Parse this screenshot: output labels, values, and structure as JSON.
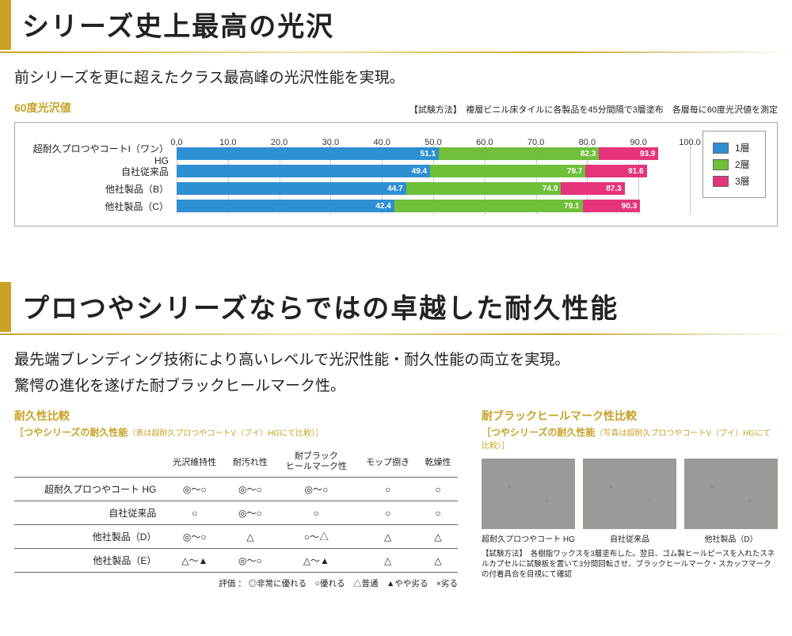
{
  "section1": {
    "headline": "シリーズ史上最高の光沢",
    "subhead": "前シリーズを更に超えたクラス最高峰の光沢性能を実現。",
    "chart": {
      "title": "60度光沢値",
      "method": "【試験方法】　複層ビニル床タイルに各製品を45分間隔で3層塗布　各層毎に60度光沢値を測定",
      "xmin": 0,
      "xmax": 100,
      "xstep": 10,
      "ticks": [
        "0.0",
        "10.0",
        "20.0",
        "30.0",
        "40.0",
        "50.0",
        "60.0",
        "70.0",
        "80.0",
        "90.0",
        "100.0"
      ],
      "tick_positions": [
        0,
        10,
        20,
        30,
        40,
        50,
        60,
        70,
        80,
        90,
        100
      ],
      "series_colors": {
        "l1": "#2f8fd3",
        "l2": "#6fbf3a",
        "l3": "#e5347a"
      },
      "legend_labels": [
        "1層",
        "2層",
        "3層"
      ],
      "rows": [
        {
          "label": "超耐久プロつやコートI（ワン）HG",
          "v": [
            51.1,
            82.3,
            93.9
          ]
        },
        {
          "label": "自社従来品",
          "v": [
            49.4,
            79.7,
            91.6
          ]
        },
        {
          "label": "他社製品（B）",
          "v": [
            44.7,
            74.9,
            87.3
          ]
        },
        {
          "label": "他社製品（C）",
          "v": [
            42.4,
            79.1,
            90.3
          ]
        }
      ],
      "value_text_color": "#ffffff",
      "grid_color": "#cccccc",
      "frame_border": "#aaaaaa"
    }
  },
  "section2": {
    "headline": "プロつやシリーズならではの卓越した耐久性能",
    "subhead1": "最先端ブレンディング技術により高いレベルで光沢性能・耐久性能の両立を実現。",
    "subhead2": "驚愕の進化を遂げた耐ブラックヒールマーク性。",
    "table": {
      "title": "耐久性比較",
      "subtitle": "［つやシリーズの耐久性能",
      "subtitle_note": "（表は超耐久プロつやコートV（ブイ）HGにて比較）］",
      "columns": [
        "光沢維持性",
        "耐汚れ性",
        "耐ブラック\nヒールマーク性",
        "モップ捌き",
        "乾燥性"
      ],
      "rows": [
        {
          "label": "超耐久プロつやコート HG",
          "cells": [
            "◎～○",
            "◎～○",
            "◎～○",
            "○",
            "○"
          ]
        },
        {
          "label": "自社従来品",
          "cells": [
            "○",
            "◎～○",
            "○",
            "○",
            "○"
          ]
        },
        {
          "label": "他社製品（D）",
          "cells": [
            "◎～○",
            "△",
            "○～△",
            "△",
            "△"
          ]
        },
        {
          "label": "他社製品（E）",
          "cells": [
            "△～▲",
            "◎～○",
            "△～▲",
            "△",
            "△"
          ]
        }
      ],
      "legend": "評価 ： ◎非常に優れる　○優れる　△普通　▲やや劣る　×劣る"
    },
    "heel": {
      "title": "耐ブラックヒールマーク性比較",
      "subtitle": "［つやシリーズの耐久性能",
      "subtitle_note": "（写真は超耐久プロつやコートV（ブイ）HGにて比較）］",
      "samples": [
        "超耐久プロつやコート HG",
        "自社従来品",
        "他社製品（D）"
      ],
      "sample_bg": "#9a9a96",
      "method": "【試験方法】　各樹脂ワックスを3層塗布した。翌日、ゴム製ヒールピースを入れたスネルカプセルに試験板を置いて3分間回転させ、ブラックヒールマーク・スカッフマークの付着具合を目視にて確認"
    }
  },
  "palette": {
    "gold": "#c7a227"
  }
}
